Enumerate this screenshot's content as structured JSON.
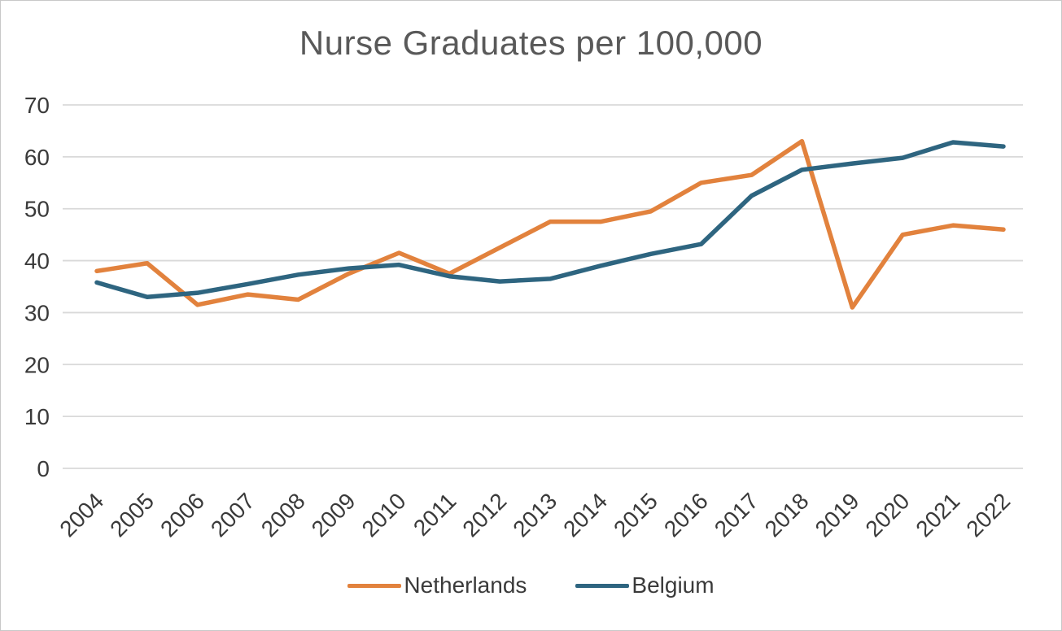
{
  "chart_data": {
    "type": "line",
    "title": "Nurse Graduates per 100,000",
    "xlabel": "",
    "ylabel": "",
    "x": [
      2004,
      2005,
      2006,
      2007,
      2008,
      2009,
      2010,
      2011,
      2012,
      2013,
      2014,
      2015,
      2016,
      2017,
      2018,
      2019,
      2020,
      2021,
      2022
    ],
    "series": [
      {
        "name": "Netherlands",
        "color": "#E2823D",
        "values": [
          38,
          39.5,
          31.5,
          33.5,
          32.5,
          37.5,
          41.5,
          37.5,
          42.5,
          47.5,
          47.5,
          49.5,
          55,
          56.5,
          63,
          31,
          45,
          46.8,
          46
        ]
      },
      {
        "name": "Belgium",
        "color": "#2E6580",
        "values": [
          35.8,
          33,
          33.8,
          35.5,
          37.3,
          38.5,
          39.2,
          37,
          36,
          36.5,
          39,
          41.3,
          43.2,
          52.5,
          57.5,
          58.7,
          59.8,
          62.8,
          62
        ]
      }
    ],
    "ylim": [
      0,
      70
    ],
    "yticks": [
      0,
      10,
      20,
      30,
      40,
      50,
      60,
      70
    ],
    "grid": true,
    "legend_position": "bottom",
    "colors": {
      "grid": "#d9d9d9",
      "tick_label": "#3a3a3a",
      "title": "#595959"
    }
  }
}
